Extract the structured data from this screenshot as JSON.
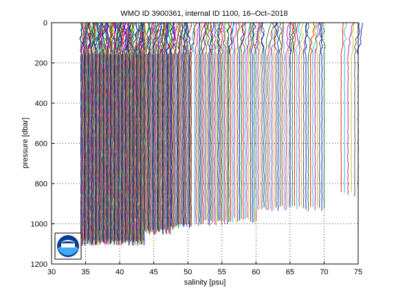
{
  "chart_data": {
    "type": "line",
    "title": "WMO ID 3900361, internal ID 1100, 16–Oct–2018",
    "xlabel": "salinity [psu]",
    "ylabel": "pressure [dbar]",
    "xlim": [
      30,
      75
    ],
    "ylim": [
      0,
      1200
    ],
    "y_reversed": true,
    "grid": "dotted",
    "x_ticks": [
      "30",
      "35",
      "40",
      "45",
      "50",
      "55",
      "60",
      "65",
      "70",
      "75"
    ],
    "y_ticks": [
      "0",
      "200",
      "400",
      "600",
      "800",
      "1000",
      "1200"
    ],
    "colors": [
      "#0000ff",
      "#008000",
      "#ff0000",
      "#00bfbf",
      "#bf00bf",
      "#bfbf00",
      "#404040"
    ],
    "profile_groups": [
      {
        "from": 34.3,
        "to": 43.6,
        "count": 120,
        "depth_max": 1110
      },
      {
        "from": 43.6,
        "to": 47.5,
        "count": 40,
        "depth_max": 1055
      },
      {
        "from": 47.5,
        "to": 50.5,
        "count": 25,
        "depth_max": 1030
      },
      {
        "from": 51.0,
        "to": 56.0,
        "count": 26,
        "depth_max": 1010
      },
      {
        "from": 56.0,
        "to": 60.0,
        "count": 16,
        "depth_max": 1000
      },
      {
        "from": 60.0,
        "to": 65.0,
        "count": 18,
        "depth_max": 940
      },
      {
        "from": 65.0,
        "to": 70.0,
        "count": 16,
        "depth_max": 940
      },
      {
        "from": 72.5,
        "to": 75.0,
        "count": 6,
        "depth_max": 870
      }
    ],
    "logo": "noaa-logo"
  }
}
